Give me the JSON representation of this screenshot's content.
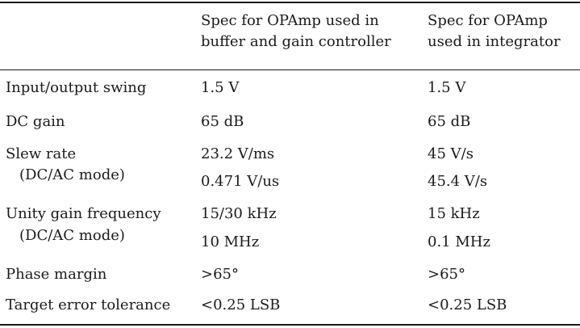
{
  "table": {
    "headers": {
      "col1_line1": "Spec for OPAmp used in",
      "col1_line2": "buffer and gain controller",
      "col2_line1": "Spec for OPAmp",
      "col2_line2": "used in integrator"
    },
    "rows": [
      {
        "label": "Input/output swing",
        "col1": "1.5 V",
        "col2": "1.5 V"
      },
      {
        "label": "DC gain",
        "col1": "65 dB",
        "col2": "65 dB"
      },
      {
        "label": "Slew rate",
        "label2": "(DC/AC mode)",
        "col1": "23.2 V/ms",
        "col1b": "0.471 V/us",
        "col2": "45 V/s",
        "col2b": "45.4 V/s"
      },
      {
        "label": "Unity gain frequency",
        "label2": "(DC/AC mode)",
        "col1": "15/30 kHz",
        "col1b": "10 MHz",
        "col2": "15 kHz",
        "col2b": "0.1 MHz"
      },
      {
        "label": "Phase margin",
        "col1": ">65°",
        "col2": ">65°"
      },
      {
        "label": "Target error tolerance",
        "col1": "<0.25 LSB",
        "col2": "<0.25 LSB"
      }
    ]
  }
}
